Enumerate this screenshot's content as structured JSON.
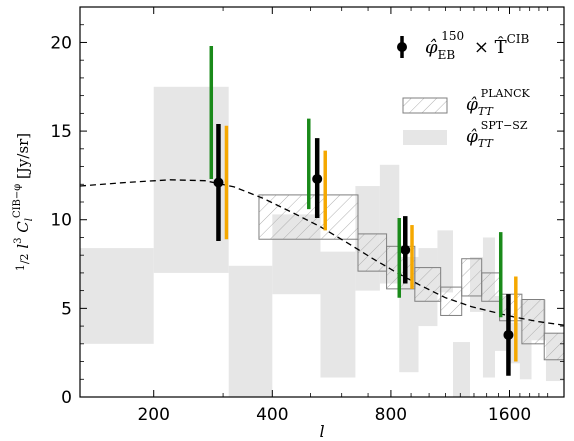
{
  "chart_data": {
    "type": "scatter",
    "xlabel": "l",
    "ylabel": "½ l³ C_l^{CIB-φ} [Jy/sr]",
    "x_scale": "log",
    "xlim": [
      130,
      2200
    ],
    "ylim": [
      0,
      22
    ],
    "x_ticks": [
      200,
      400,
      800,
      1600
    ],
    "y_ticks": [
      0,
      5,
      10,
      15,
      20
    ],
    "grid": false,
    "legend_position": "top-right",
    "legend": [
      {
        "name": "φ̂_EB^150 × T̂^CIB",
        "style": "marker"
      },
      {
        "name": "φ̂_TT^PLANCK",
        "style": "hatched-box"
      },
      {
        "name": "φ̂_TT^SPT-SZ",
        "style": "gray-box"
      }
    ],
    "series": [
      {
        "name": "φ̂_EB^150 × T̂^CIB",
        "color": "#000000",
        "points": [
          {
            "x": 292,
            "y": 12.1,
            "ylow": 8.8,
            "yhigh": 15.4
          },
          {
            "x": 520,
            "y": 12.3,
            "ylow": 10.1,
            "yhigh": 14.6
          },
          {
            "x": 870,
            "y": 8.3,
            "ylow": 6.4,
            "yhigh": 10.2
          },
          {
            "x": 1590,
            "y": 3.5,
            "ylow": 1.2,
            "yhigh": 5.8
          }
        ]
      },
      {
        "name": "green error bars",
        "color": "#1a8a1a",
        "points": [
          {
            "x": 280,
            "ylow": 12.3,
            "yhigh": 19.8
          },
          {
            "x": 495,
            "ylow": 10.6,
            "yhigh": 15.7
          },
          {
            "x": 840,
            "ylow": 5.6,
            "yhigh": 10.1
          },
          {
            "x": 1520,
            "ylow": 4.5,
            "yhigh": 9.3
          }
        ]
      },
      {
        "name": "orange error bars",
        "color": "#f5a800",
        "points": [
          {
            "x": 306,
            "ylow": 8.9,
            "yhigh": 15.3
          },
          {
            "x": 545,
            "ylow": 9.4,
            "yhigh": 13.9
          },
          {
            "x": 905,
            "ylow": 6.1,
            "yhigh": 9.7
          },
          {
            "x": 1660,
            "ylow": 2.0,
            "yhigh": 6.8
          }
        ]
      }
    ],
    "planck_boxes": [
      {
        "x0": 370,
        "x1": 660,
        "y0": 8.9,
        "y1": 11.4
      },
      {
        "x0": 660,
        "x1": 780,
        "y0": 7.1,
        "y1": 9.2
      },
      {
        "x0": 780,
        "x1": 920,
        "y0": 6.1,
        "y1": 8.5
      },
      {
        "x0": 920,
        "x1": 1070,
        "y0": 5.4,
        "y1": 7.3
      },
      {
        "x0": 1070,
        "x1": 1210,
        "y0": 4.6,
        "y1": 6.2
      },
      {
        "x0": 1210,
        "x1": 1360,
        "y0": 5.7,
        "y1": 7.8
      },
      {
        "x0": 1360,
        "x1": 1510,
        "y0": 5.4,
        "y1": 7.0
      },
      {
        "x0": 1510,
        "x1": 1720,
        "y0": 4.3,
        "y1": 5.8
      },
      {
        "x0": 1720,
        "x1": 1960,
        "y0": 3.0,
        "y1": 5.5
      },
      {
        "x0": 1960,
        "x1": 2200,
        "y0": 2.1,
        "y1": 3.6
      }
    ],
    "spt_boxes": [
      {
        "x0": 130,
        "x1": 200,
        "y0": 3.0,
        "y1": 8.4
      },
      {
        "x0": 200,
        "x1": 310,
        "y0": 7.0,
        "y1": 17.5
      },
      {
        "x0": 310,
        "x1": 400,
        "y0": 0.0,
        "y1": 7.4
      },
      {
        "x0": 400,
        "x1": 530,
        "y0": 5.8,
        "y1": 10.3
      },
      {
        "x0": 530,
        "x1": 650,
        "y0": 1.1,
        "y1": 8.2
      },
      {
        "x0": 650,
        "x1": 750,
        "y0": 6.0,
        "y1": 11.9
      },
      {
        "x0": 750,
        "x1": 840,
        "y0": 6.4,
        "y1": 13.1
      },
      {
        "x0": 840,
        "x1": 940,
        "y0": 1.4,
        "y1": 7.9
      },
      {
        "x0": 940,
        "x1": 1050,
        "y0": 4.0,
        "y1": 8.4
      },
      {
        "x0": 1050,
        "x1": 1150,
        "y0": 5.9,
        "y1": 9.4
      },
      {
        "x0": 1150,
        "x1": 1270,
        "y0": 0.0,
        "y1": 3.1
      },
      {
        "x0": 1270,
        "x1": 1370,
        "y0": 4.8,
        "y1": 7.9
      },
      {
        "x0": 1370,
        "x1": 1470,
        "y0": 1.1,
        "y1": 9.0
      },
      {
        "x0": 1470,
        "x1": 1570,
        "y0": 2.6,
        "y1": 5.7
      },
      {
        "x0": 1570,
        "x1": 1700,
        "y0": 1.9,
        "y1": 4.2
      },
      {
        "x0": 1700,
        "x1": 1820,
        "y0": 1.0,
        "y1": 5.5
      },
      {
        "x0": 1820,
        "x1": 1980,
        "y0": 3.2,
        "y1": 5.5
      },
      {
        "x0": 1980,
        "x1": 2200,
        "y0": 0.9,
        "y1": 3.6
      }
    ],
    "theory_curve": [
      [
        130,
        11.9
      ],
      [
        170,
        12.1
      ],
      [
        220,
        12.25
      ],
      [
        270,
        12.2
      ],
      [
        320,
        11.85
      ],
      [
        380,
        11.2
      ],
      [
        450,
        10.4
      ],
      [
        530,
        9.6
      ],
      [
        620,
        8.7
      ],
      [
        720,
        7.8
      ],
      [
        830,
        7.0
      ],
      [
        950,
        6.3
      ],
      [
        1100,
        5.6
      ],
      [
        1280,
        5.1
      ],
      [
        1450,
        4.8
      ],
      [
        1650,
        4.5
      ],
      [
        1900,
        4.25
      ],
      [
        2200,
        4.05
      ]
    ],
    "colors": {
      "green": "#1a8a1a",
      "orange": "#f5a800",
      "black": "#000000",
      "spt_fill": "#e6e6e6",
      "planck_edge": "#7f7f7f"
    }
  }
}
